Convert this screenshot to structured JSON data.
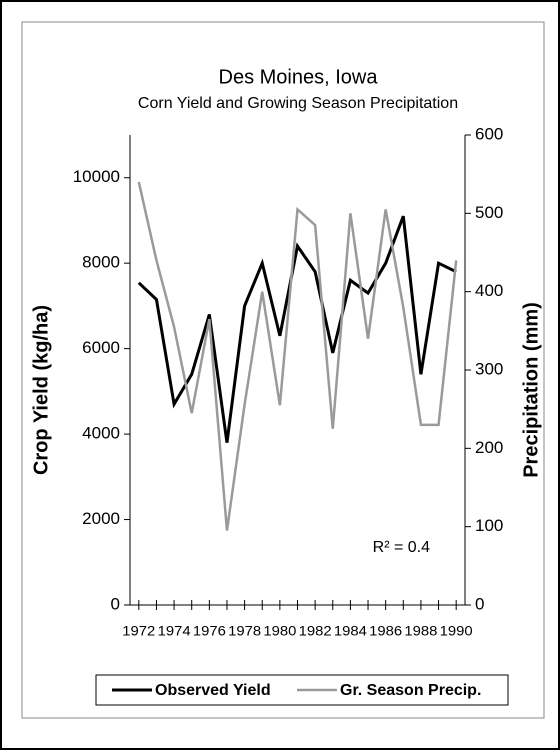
{
  "chart_data": {
    "type": "line",
    "title": "Des Moines, Iowa",
    "subtitle": "Corn Yield and Growing Season Precipitation",
    "y_label": "Crop Yield (kg/ha)",
    "y2_label": "Precipitation (mm)",
    "annotation": "R² = 0.4",
    "x": [
      1972,
      1973,
      1974,
      1975,
      1976,
      1977,
      1978,
      1979,
      1980,
      1981,
      1982,
      1983,
      1984,
      1985,
      1986,
      1987,
      1988,
      1989,
      1990
    ],
    "xlim": [
      1971.5,
      1990.5
    ],
    "xticks": [
      1972,
      1974,
      1976,
      1978,
      1980,
      1982,
      1984,
      1986,
      1988,
      1990
    ],
    "ylim": [
      0,
      11000
    ],
    "yticks": [
      0,
      2000,
      4000,
      6000,
      8000,
      10000
    ],
    "y2lim": [
      0,
      600
    ],
    "y2ticks": [
      0,
      100,
      200,
      300,
      400,
      500,
      600
    ],
    "legend": "bottom",
    "series": [
      {
        "name": "Observed Yield",
        "color": "#000000",
        "values": [
          7540,
          7150,
          4700,
          5400,
          6800,
          3800,
          7000,
          8000,
          6300,
          8400,
          7800,
          5900,
          7600,
          7300,
          8000,
          9100,
          5400,
          8000,
          7800
        ]
      },
      {
        "name": "Gr. Season Precip.",
        "color": "#9a9a9a",
        "axis": "y2",
        "values": [
          540,
          440,
          355,
          245,
          365,
          95,
          256,
          400,
          255,
          505,
          485,
          225,
          500,
          340,
          505,
          380,
          230,
          230,
          440
        ]
      }
    ]
  }
}
